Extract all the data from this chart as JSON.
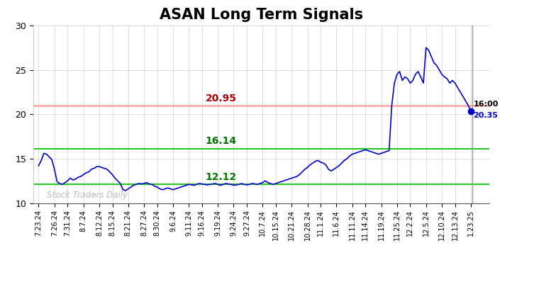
{
  "title": "ASAN Long Term Signals",
  "title_fontsize": 15,
  "title_fontweight": "bold",
  "ylim": [
    10,
    30
  ],
  "yticks": [
    10,
    15,
    20,
    25,
    30
  ],
  "hline_red": 20.95,
  "hline_red_color": "#ffaaaa",
  "hline_green_upper": 16.14,
  "hline_green_lower": 12.12,
  "hline_green_color": "#22cc22",
  "label_red_text": "20.95",
  "label_red_color": "#aa0000",
  "label_green_upper_text": "16.14",
  "label_green_lower_text": "12.12",
  "label_green_color": "#007700",
  "watermark": "Stock Traders Daily",
  "watermark_color": "#bbbbbb",
  "endpoint_value": 20.35,
  "endpoint_color": "#0000cc",
  "line_color": "#0000cc",
  "background_color": "#ffffff",
  "grid_color": "#dddddd",
  "xtick_labels": [
    "7.23.24",
    "7.26.24",
    "7.31.24",
    "8.7.24",
    "8.12.24",
    "8.15.24",
    "8.21.24",
    "8.27.24",
    "8.30.24",
    "9.6.24",
    "9.11.24",
    "9.16.24",
    "9.19.24",
    "9.24.24",
    "9.27.24",
    "10.7.24",
    "10.15.24",
    "10.21.24",
    "10.28.24",
    "11.1.24",
    "11.6.24",
    "11.11.24",
    "11.14.24",
    "11.19.24",
    "11.25.24",
    "12.2.24",
    "12.5.24",
    "12.10.24",
    "12.13.24",
    "1.23.25"
  ],
  "price_data": [
    14.2,
    14.8,
    15.6,
    15.5,
    15.2,
    14.9,
    13.8,
    12.4,
    12.2,
    12.1,
    12.3,
    12.5,
    12.8,
    12.6,
    12.7,
    12.9,
    13.0,
    13.2,
    13.4,
    13.5,
    13.8,
    13.9,
    14.1,
    14.1,
    14.0,
    13.9,
    13.8,
    13.5,
    13.2,
    12.8,
    12.5,
    12.2,
    11.5,
    11.4,
    11.6,
    11.8,
    12.0,
    12.1,
    12.2,
    12.15,
    12.2,
    12.3,
    12.15,
    12.1,
    11.9,
    11.8,
    11.6,
    11.5,
    11.6,
    11.7,
    11.6,
    11.5,
    11.6,
    11.7,
    11.8,
    11.9,
    12.0,
    12.1,
    12.05,
    12.0,
    12.1,
    12.2,
    12.15,
    12.1,
    12.05,
    12.1,
    12.15,
    12.2,
    12.1,
    12.0,
    12.1,
    12.2,
    12.15,
    12.1,
    12.0,
    12.05,
    12.1,
    12.2,
    12.1,
    12.05,
    12.1,
    12.2,
    12.15,
    12.1,
    12.2,
    12.3,
    12.5,
    12.3,
    12.2,
    12.1,
    12.2,
    12.3,
    12.4,
    12.5,
    12.6,
    12.7,
    12.8,
    12.9,
    13.0,
    13.2,
    13.5,
    13.8,
    14.0,
    14.3,
    14.5,
    14.7,
    14.8,
    14.6,
    14.5,
    14.3,
    13.8,
    13.6,
    13.8,
    14.0,
    14.2,
    14.5,
    14.8,
    15.0,
    15.3,
    15.5,
    15.6,
    15.7,
    15.8,
    15.9,
    16.0,
    15.9,
    15.8,
    15.7,
    15.6,
    15.5,
    15.6,
    15.7,
    15.8,
    15.9,
    21.0,
    23.5,
    24.5,
    24.8,
    23.8,
    24.2,
    24.0,
    23.5,
    23.8,
    24.5,
    24.8,
    24.2,
    23.5,
    27.5,
    27.2,
    26.5,
    25.8,
    25.5,
    25.0,
    24.5,
    24.2,
    24.0,
    23.5,
    23.8,
    23.5,
    23.0,
    22.5,
    22.0,
    21.5,
    21.0,
    20.35
  ]
}
